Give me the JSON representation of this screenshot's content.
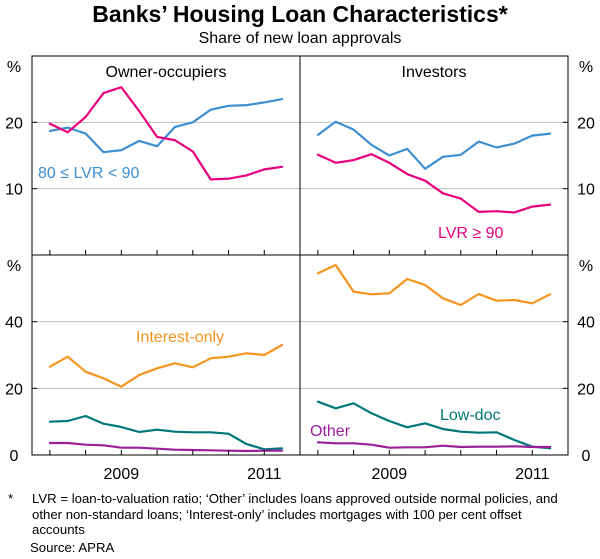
{
  "title": "Banks’ Housing Loan Characteristics*",
  "subtitle": "Share of new loan approvals",
  "footnote_marker": "*",
  "footnote": "LVR = loan-to-valuation ratio; ‘Other’ includes loans approved outside normal policies, and other non-standard loans; ‘Interest-only’ includes mortgages with 100 per cent offset accounts",
  "source": "Source: APRA",
  "colors": {
    "lvr_80_90": "#3d8fd1",
    "lvr_90": "#e6007e",
    "interest_only": "#f7941d",
    "low_doc": "#00777a",
    "other": "#9b1f9b",
    "grid": "#bfbfbf",
    "frame": "#000000"
  },
  "chart_data": [
    {
      "type": "line",
      "panel": "Owner-occupiers",
      "row": "top",
      "unit": "%",
      "ylim": [
        0,
        30
      ],
      "yticks": [
        10,
        20
      ],
      "xlim": [
        2007.75,
        2011.5
      ],
      "series": [
        {
          "name": "80 ≤ LVR < 90",
          "color_key": "lvr_80_90",
          "x": [
            2008.0,
            2008.25,
            2008.5,
            2008.75,
            2009.0,
            2009.25,
            2009.5,
            2009.75,
            2010.0,
            2010.25,
            2010.5,
            2010.75,
            2011.0,
            2011.25
          ],
          "y": [
            18.7,
            19.2,
            18.3,
            15.5,
            15.8,
            17.2,
            16.4,
            19.3,
            20.0,
            21.9,
            22.5,
            22.6,
            23.0,
            23.5
          ]
        },
        {
          "name": "LVR ≥ 90",
          "color_key": "lvr_90",
          "x": [
            2008.0,
            2008.25,
            2008.5,
            2008.75,
            2009.0,
            2009.25,
            2009.5,
            2009.75,
            2010.0,
            2010.25,
            2010.5,
            2010.75,
            2011.0,
            2011.25
          ],
          "y": [
            19.8,
            18.5,
            20.8,
            24.4,
            25.3,
            21.7,
            17.8,
            17.3,
            15.6,
            11.4,
            11.5,
            12.0,
            12.9,
            13.3
          ]
        }
      ],
      "annotations": [
        "80 ≤ LVR < 90"
      ]
    },
    {
      "type": "line",
      "panel": "Investors",
      "row": "top",
      "unit": "%",
      "ylim": [
        0,
        30
      ],
      "yticks": [
        10,
        20
      ],
      "xlim": [
        2007.75,
        2011.5
      ],
      "series": [
        {
          "name": "80 ≤ LVR < 90",
          "color_key": "lvr_80_90",
          "x": [
            2008.0,
            2008.25,
            2008.5,
            2008.75,
            2009.0,
            2009.25,
            2009.5,
            2009.75,
            2010.0,
            2010.25,
            2010.5,
            2010.75,
            2011.0,
            2011.25
          ],
          "y": [
            18.1,
            20.1,
            18.9,
            16.6,
            15.0,
            16.0,
            13.0,
            14.8,
            15.1,
            17.1,
            16.2,
            16.8,
            18.0,
            18.3
          ]
        },
        {
          "name": "LVR ≥ 90",
          "color_key": "lvr_90",
          "x": [
            2008.0,
            2008.25,
            2008.5,
            2008.75,
            2009.0,
            2009.25,
            2009.5,
            2009.75,
            2010.0,
            2010.25,
            2010.5,
            2010.75,
            2011.0,
            2011.25
          ],
          "y": [
            15.1,
            13.9,
            14.3,
            15.2,
            13.9,
            12.2,
            11.2,
            9.3,
            8.5,
            6.5,
            6.6,
            6.4,
            7.3,
            7.6
          ]
        }
      ],
      "annotations": [
        "LVR ≥ 90"
      ]
    },
    {
      "type": "line",
      "panel": "Owner-occupiers",
      "row": "bottom",
      "unit": "%",
      "ylim": [
        0,
        60
      ],
      "yticks": [
        0,
        20,
        40
      ],
      "xlim": [
        2007.75,
        2011.5
      ],
      "xticks": [
        2009,
        2011
      ],
      "series": [
        {
          "name": "Interest-only",
          "color_key": "interest_only",
          "x": [
            2008.0,
            2008.25,
            2008.5,
            2008.75,
            2009.0,
            2009.25,
            2009.5,
            2009.75,
            2010.0,
            2010.25,
            2010.5,
            2010.75,
            2011.0,
            2011.25
          ],
          "y": [
            26.5,
            29.5,
            25.0,
            23.0,
            20.5,
            24.0,
            26.0,
            27.5,
            26.3,
            29.0,
            29.5,
            30.5,
            30.0,
            33.0
          ]
        },
        {
          "name": "Low-doc",
          "color_key": "low_doc",
          "x": [
            2008.0,
            2008.25,
            2008.5,
            2008.75,
            2009.0,
            2009.25,
            2009.5,
            2009.75,
            2010.0,
            2010.25,
            2010.5,
            2010.75,
            2011.0,
            2011.25
          ],
          "y": [
            10.0,
            10.2,
            11.7,
            9.4,
            8.4,
            6.9,
            7.6,
            7.0,
            6.8,
            6.8,
            6.4,
            3.3,
            1.7,
            2.0
          ]
        },
        {
          "name": "Other",
          "color_key": "other",
          "x": [
            2008.0,
            2008.25,
            2008.5,
            2008.75,
            2009.0,
            2009.25,
            2009.5,
            2009.75,
            2010.0,
            2010.25,
            2010.5,
            2010.75,
            2011.0,
            2011.25
          ],
          "y": [
            3.6,
            3.6,
            3.1,
            2.9,
            2.2,
            2.2,
            1.9,
            1.6,
            1.5,
            1.4,
            1.3,
            1.2,
            1.3,
            1.3
          ]
        }
      ],
      "annotations": [
        "Interest-only"
      ]
    },
    {
      "type": "line",
      "panel": "Investors",
      "row": "bottom",
      "unit": "%",
      "ylim": [
        0,
        60
      ],
      "yticks": [
        0,
        20,
        40
      ],
      "xlim": [
        2007.75,
        2011.5
      ],
      "xticks": [
        2009,
        2011
      ],
      "series": [
        {
          "name": "Interest-only",
          "color_key": "interest_only",
          "x": [
            2008.0,
            2008.25,
            2008.5,
            2008.75,
            2009.0,
            2009.25,
            2009.5,
            2009.75,
            2010.0,
            2010.25,
            2010.5,
            2010.75,
            2011.0,
            2011.25
          ],
          "y": [
            54.5,
            57.0,
            49.0,
            48.2,
            48.5,
            52.8,
            51.0,
            47.0,
            45.0,
            48.3,
            46.3,
            46.5,
            45.5,
            48.2
          ]
        },
        {
          "name": "Low-doc",
          "color_key": "low_doc",
          "x": [
            2008.0,
            2008.25,
            2008.5,
            2008.75,
            2009.0,
            2009.25,
            2009.5,
            2009.75,
            2010.0,
            2010.25,
            2010.5,
            2010.75,
            2011.0,
            2011.25
          ],
          "y": [
            16.0,
            14.0,
            15.5,
            12.5,
            10.2,
            8.3,
            9.5,
            7.8,
            7.0,
            6.7,
            6.8,
            4.5,
            2.5,
            2.0
          ]
        },
        {
          "name": "Other",
          "color_key": "other",
          "x": [
            2008.0,
            2008.25,
            2008.5,
            2008.75,
            2009.0,
            2009.25,
            2009.5,
            2009.75,
            2010.0,
            2010.25,
            2010.5,
            2010.75,
            2011.0,
            2011.25
          ],
          "y": [
            3.8,
            3.5,
            3.5,
            3.1,
            2.2,
            2.3,
            2.3,
            2.8,
            2.4,
            2.5,
            2.5,
            2.6,
            2.4,
            2.4
          ]
        }
      ],
      "annotations": [
        "Low-doc",
        "Other"
      ]
    }
  ]
}
